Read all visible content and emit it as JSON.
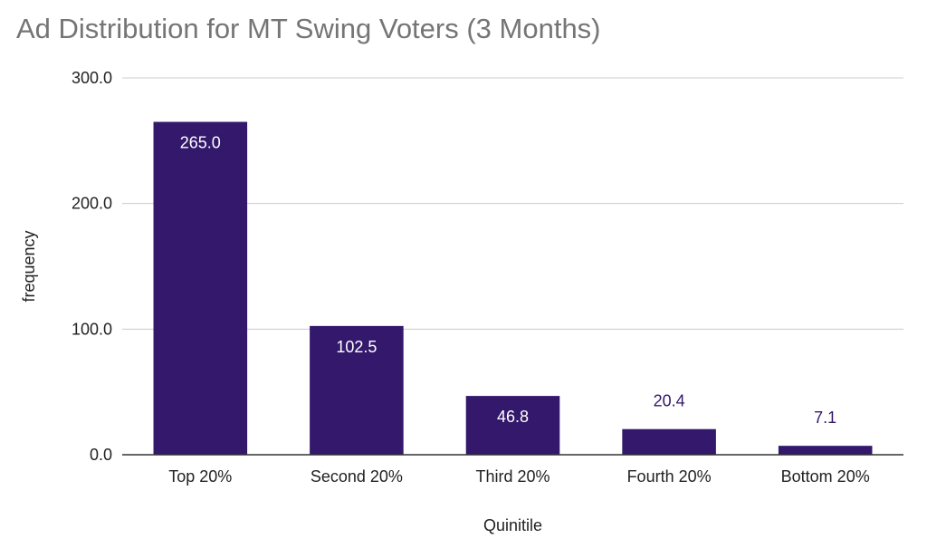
{
  "chart_data": {
    "type": "bar",
    "title": "Ad Distribution for MT Swing Voters (3 Months)",
    "xlabel": "Quinitile",
    "ylabel": "frequency",
    "categories": [
      "Top 20%",
      "Second 20%",
      "Third 20%",
      "Fourth 20%",
      "Bottom 20%"
    ],
    "values": [
      265.0,
      102.5,
      46.8,
      20.4,
      7.1
    ],
    "data_labels": [
      "265.0",
      "102.5",
      "46.8",
      "20.4",
      "7.1"
    ],
    "ylim": [
      0,
      300
    ],
    "yticks": [
      0,
      100,
      200,
      300
    ],
    "ytick_labels": [
      "0.0",
      "100.0",
      "200.0",
      "300.0"
    ],
    "grid": true,
    "legend": "none",
    "bar_color": "#33186b",
    "label_inside_color": "#ffffff",
    "label_outside_color": "#33186b"
  }
}
